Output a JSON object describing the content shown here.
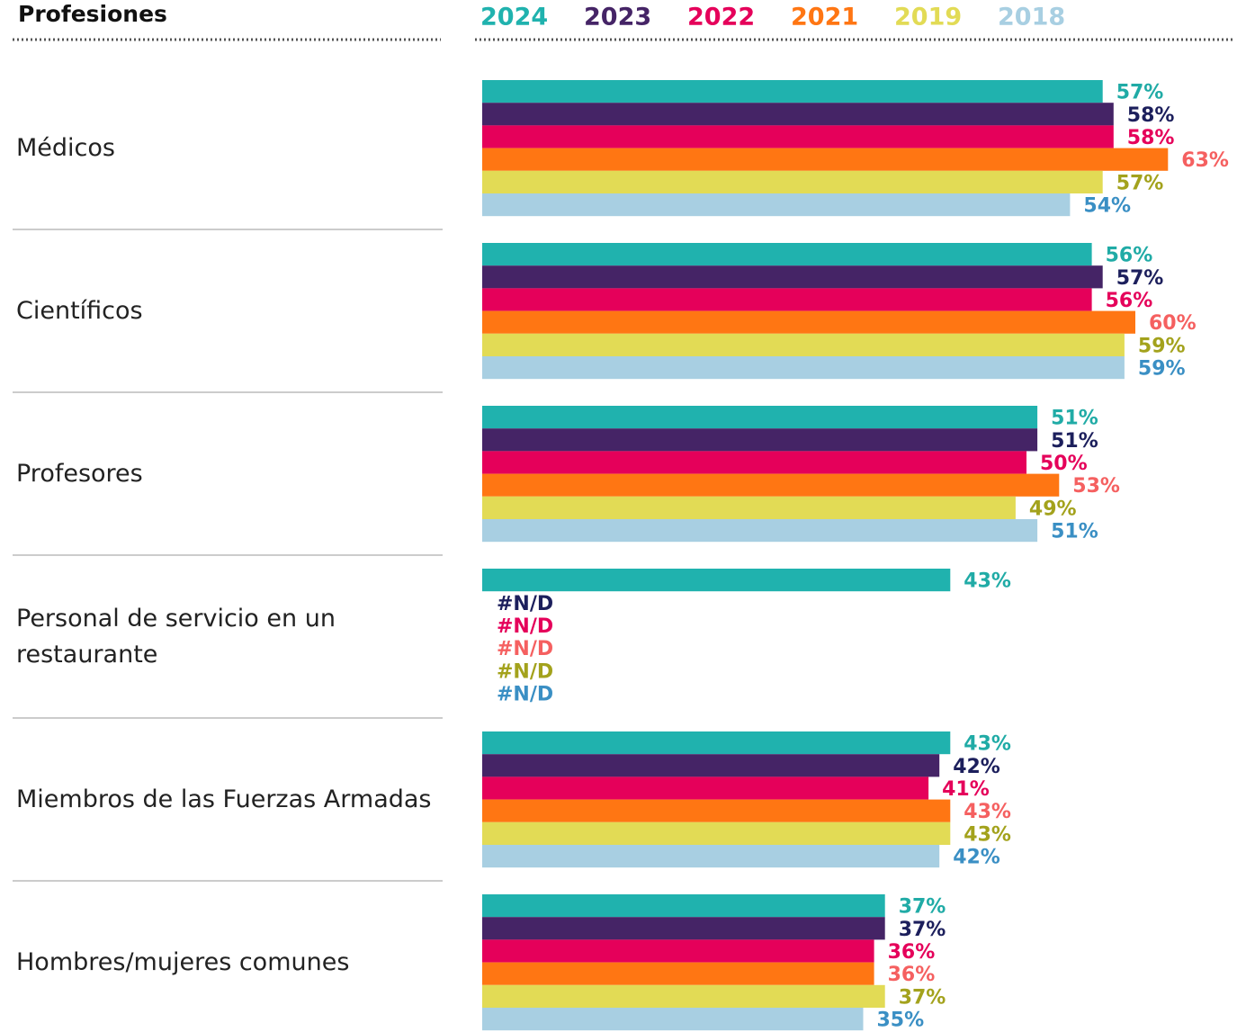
{
  "chart_data": {
    "type": "bar",
    "orientation": "horizontal",
    "title": "Profesiones",
    "categories": [
      "Médicos",
      "Científicos",
      "Profesores",
      "Personal de servicio en un restaurante",
      "Miembros de las Fuerzas Armadas",
      "Hombres/mujeres comunes"
    ],
    "series": [
      {
        "name": "2024",
        "color": "#20b2ae",
        "label_color": "#20aba6",
        "values": [
          57,
          56,
          51,
          43,
          43,
          37
        ],
        "value_labels": [
          "57%",
          "56%",
          "51%",
          "43%",
          "43%",
          "37%"
        ]
      },
      {
        "name": "2023",
        "color": "#452466",
        "label_color": "#1c1f5c",
        "values": [
          58,
          57,
          51,
          null,
          42,
          37
        ],
        "value_labels": [
          "58%",
          "57%",
          "51%",
          "#N/D",
          "42%",
          "37%"
        ]
      },
      {
        "name": "2022",
        "color": "#e5005a",
        "label_color": "#e5005a",
        "values": [
          58,
          56,
          50,
          null,
          41,
          36
        ],
        "value_labels": [
          "58%",
          "56%",
          "50%",
          "#N/D",
          "41%",
          "36%"
        ]
      },
      {
        "name": "2021",
        "color": "#ff7613",
        "label_color": "#f56060",
        "values": [
          63,
          60,
          53,
          null,
          43,
          36
        ],
        "value_labels": [
          "63%",
          "60%",
          "53%",
          "#N/D",
          "43%",
          "36%"
        ]
      },
      {
        "name": "2019",
        "color": "#e2db55",
        "label_color": "#a3a21c",
        "values": [
          57,
          59,
          49,
          null,
          43,
          37
        ],
        "value_labels": [
          "57%",
          "59%",
          "49%",
          "#N/D",
          "43%",
          "37%"
        ]
      },
      {
        "name": "2018",
        "color": "#a8cfe2",
        "label_color": "#3a8fc4",
        "values": [
          54,
          59,
          51,
          null,
          42,
          35
        ],
        "value_labels": [
          "54%",
          "59%",
          "51%",
          "#N/D",
          "42%",
          "35%"
        ]
      }
    ]
  }
}
